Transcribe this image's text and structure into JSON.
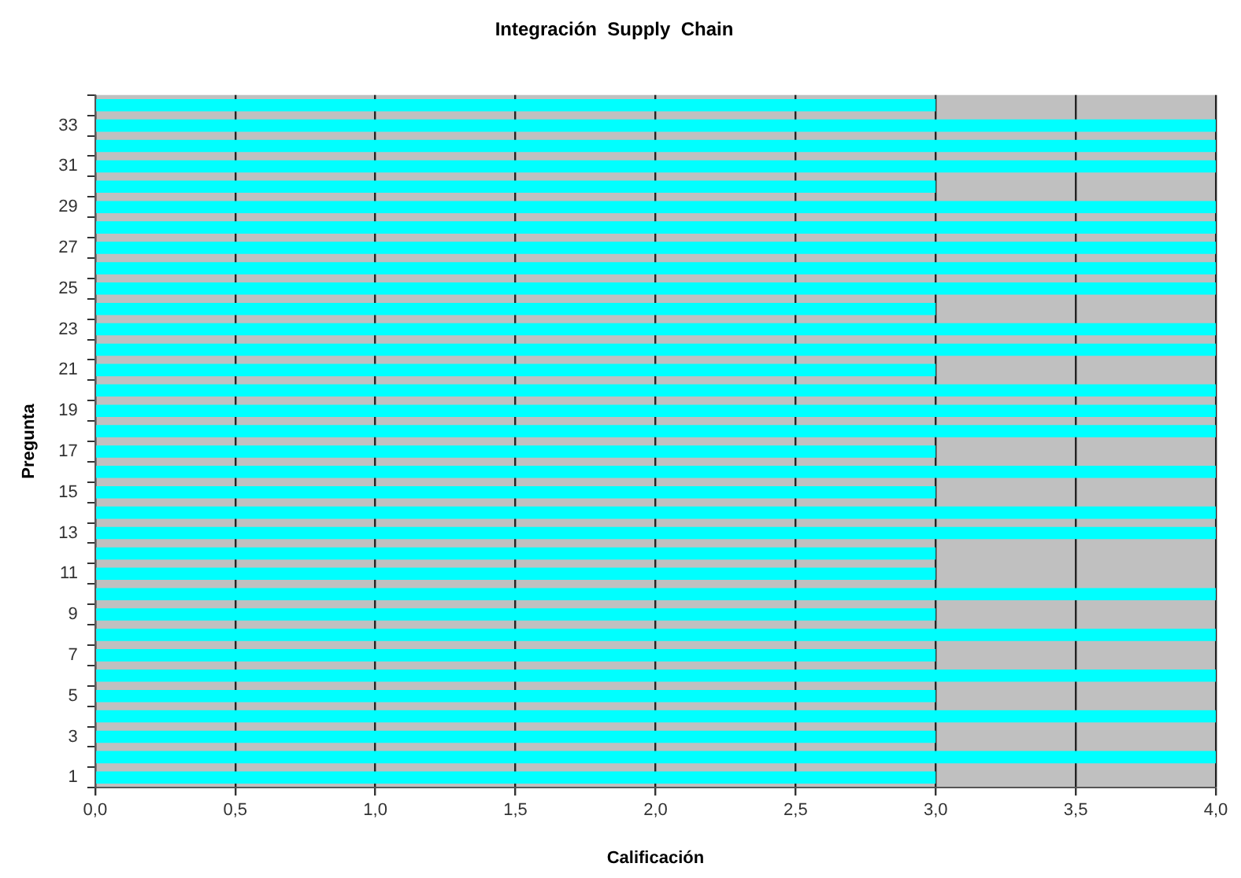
{
  "chart_data": {
    "type": "bar",
    "orientation": "horizontal",
    "title": "Integración  Supply  Chain",
    "xlabel": "Calificación",
    "ylabel": "Pregunta",
    "categories": [
      null,
      "33",
      null,
      "31",
      null,
      "29",
      null,
      "27",
      null,
      "25",
      null,
      "23",
      null,
      "21",
      null,
      "19",
      null,
      "17",
      null,
      "15",
      null,
      "13",
      null,
      "11",
      null,
      "9",
      null,
      "7",
      null,
      "5",
      null,
      "3",
      null,
      "1"
    ],
    "values": [
      3,
      4,
      4,
      4,
      3,
      4,
      4,
      4,
      4,
      4,
      3,
      4,
      4,
      3,
      4,
      4,
      4,
      3,
      4,
      3,
      4,
      4,
      3,
      3,
      4,
      3,
      4,
      3,
      4,
      3,
      4,
      3,
      4,
      3
    ],
    "color": "#00ffff",
    "xlim": [
      0,
      4
    ],
    "xticks": [
      {
        "value": 0,
        "label": "0,0"
      },
      {
        "value": 0.5,
        "label": "0,5"
      },
      {
        "value": 1,
        "label": "1,0"
      },
      {
        "value": 1.5,
        "label": "1,5"
      },
      {
        "value": 2,
        "label": "2,0"
      },
      {
        "value": 2.5,
        "label": "2,5"
      },
      {
        "value": 3,
        "label": "3,0"
      },
      {
        "value": 3.5,
        "label": "3,5"
      },
      {
        "value": 4,
        "label": "4,0"
      }
    ],
    "grid": "x"
  }
}
